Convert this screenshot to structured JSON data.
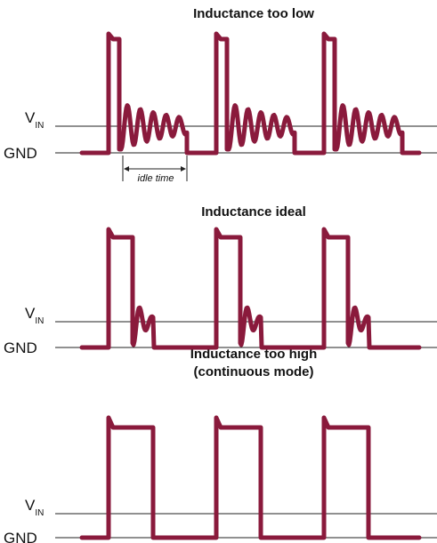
{
  "panels": [
    {
      "title": [
        "Inductance too low"
      ],
      "vin": {
        "main": "V",
        "sub": "IN"
      },
      "gnd": "GND",
      "annotation": "idle time"
    },
    {
      "title": [
        "Inductance ideal"
      ],
      "vin": {
        "main": "V",
        "sub": "IN"
      },
      "gnd": "GND"
    },
    {
      "title": [
        "Inductance too high",
        "(continuous mode)"
      ],
      "vin": {
        "main": "V",
        "sub": "IN"
      },
      "gnd": "GND"
    }
  ]
}
